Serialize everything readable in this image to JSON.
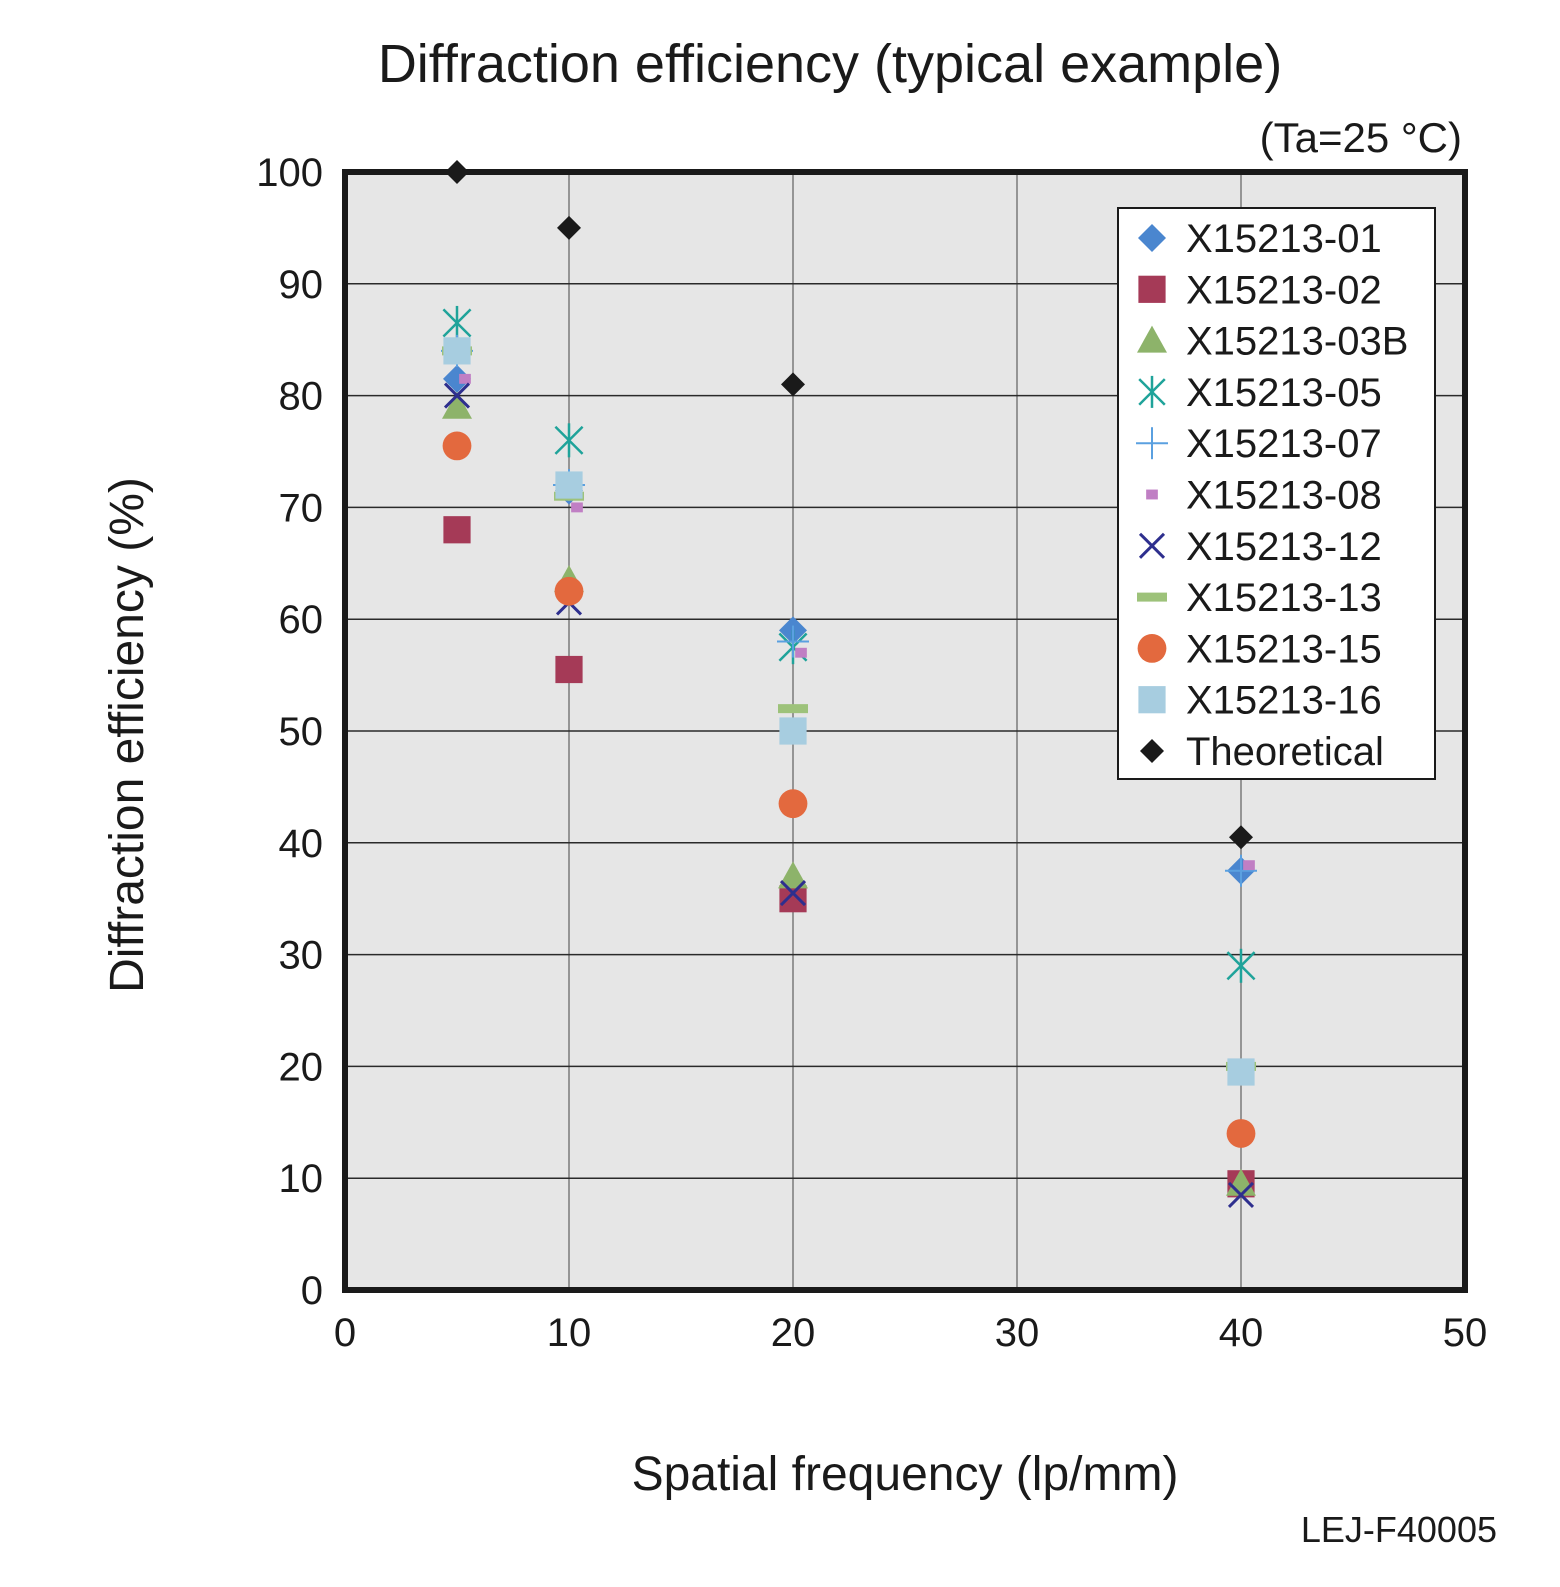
{
  "chart_data": {
    "type": "scatter",
    "title": "Diffraction efficiency (typical example)",
    "condition_note": "(Ta=25 °C)",
    "xlabel": "Spatial frequency (lp/mm)",
    "ylabel": "Diffraction efficiency (%)",
    "xlim": [
      0,
      50
    ],
    "ylim": [
      0,
      100
    ],
    "x_ticks": [
      "0",
      "10",
      "20",
      "30",
      "40",
      "50"
    ],
    "y_ticks": [
      "0",
      "10",
      "20",
      "30",
      "40",
      "50",
      "60",
      "70",
      "80",
      "90",
      "100"
    ],
    "grid": true,
    "legend_position": "top-right",
    "x": [
      5,
      10,
      20,
      40
    ],
    "series": [
      {
        "name": "X15213-01",
        "marker": "diamond",
        "color": "#4a86cf",
        "values": [
          81.5,
          71.5,
          59,
          37.5
        ]
      },
      {
        "name": "X15213-02",
        "marker": "square",
        "color": "#a53a57",
        "values": [
          68,
          55.5,
          35,
          9.5
        ]
      },
      {
        "name": "X15213-03B",
        "marker": "triangle",
        "color": "#8db36a",
        "values": [
          79,
          63.5,
          37,
          9.5
        ]
      },
      {
        "name": "X15213-05",
        "marker": "asterisk",
        "color": "#1fa39a",
        "values": [
          86.5,
          76,
          57.5,
          29
        ]
      },
      {
        "name": "X15213-07",
        "marker": "plus",
        "color": "#5aa0e0",
        "values": [
          84,
          72,
          58,
          37.5
        ]
      },
      {
        "name": "X15213-08",
        "marker": "small-square",
        "color": "#c07fc4",
        "values": [
          81.5,
          70,
          57,
          38
        ]
      },
      {
        "name": "X15213-12",
        "marker": "cross",
        "color": "#2e2f8e",
        "values": [
          80,
          61.5,
          35.5,
          8.5
        ]
      },
      {
        "name": "X15213-13",
        "marker": "dash",
        "color": "#9dc27a",
        "values": [
          84,
          71,
          52,
          20
        ]
      },
      {
        "name": "X15213-15",
        "marker": "circle",
        "color": "#e3693e",
        "values": [
          75.5,
          62.5,
          43.5,
          14
        ]
      },
      {
        "name": "X15213-16",
        "marker": "square",
        "color": "#a7cde0",
        "values": [
          84,
          72,
          50,
          19.5
        ]
      },
      {
        "name": "Theoretical",
        "marker": "diamond",
        "color": "#1a1a1a",
        "values": [
          100,
          95,
          81,
          40.5
        ]
      }
    ]
  },
  "figure_code": "LEJ-F40005"
}
